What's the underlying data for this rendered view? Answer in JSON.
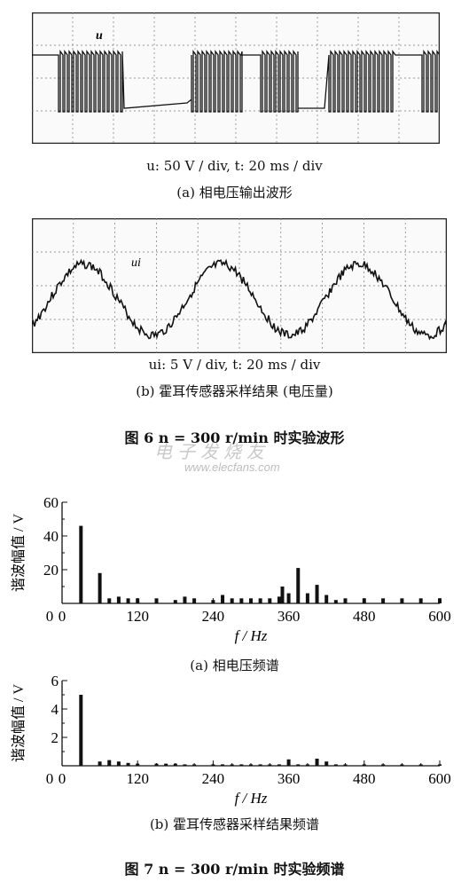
{
  "figure6": {
    "scope_a": {
      "trace_label": "u"
    },
    "caption_a_scale": "u: 50 V / div, t: 20 ms / div",
    "caption_a_title": "(a)  相电压输出波形",
    "scope_b": {
      "trace_label": "ui"
    },
    "caption_b_scale": "ui: 5 V / div, t: 20 ms / div",
    "caption_b_title": "(b)  霍耳传感器采样结果 (电压量)",
    "title": "图 6    n = 300 r/min 时实验波形"
  },
  "watermark": {
    "text": "www.elecfans.com",
    "logo_text": "电子发烧友"
  },
  "figure7": {
    "caption_a": "(a) 相电压频谱",
    "caption_b": "(b) 霍耳传感器采样结果频谱",
    "title": "图 7    n = 300 r/min 时实验频谱"
  },
  "chart_data": [
    {
      "type": "bar",
      "title": "",
      "ylabel": "谐波幅值 / V",
      "xlabel": "f / Hz",
      "xlim": [
        0,
        600
      ],
      "ylim": [
        0,
        60
      ],
      "xticks": [
        0,
        120,
        240,
        360,
        480,
        600
      ],
      "yticks": [
        20,
        40,
        60
      ],
      "grid": false,
      "x": [
        30,
        60,
        75,
        90,
        105,
        120,
        150,
        180,
        195,
        210,
        240,
        255,
        270,
        285,
        300,
        315,
        330,
        345,
        350,
        360,
        375,
        390,
        405,
        420,
        435,
        450,
        480,
        510,
        540,
        570,
        600
      ],
      "values": [
        46,
        18,
        3,
        4,
        3,
        3,
        3,
        2,
        4,
        3,
        2,
        5,
        3,
        3,
        3,
        3,
        3,
        4,
        10,
        6,
        21,
        6,
        11,
        5,
        2,
        3,
        3,
        3,
        3,
        3,
        3
      ]
    },
    {
      "type": "bar",
      "title": "",
      "ylabel": "谐波幅值 / V",
      "xlabel": "f / Hz",
      "xlim": [
        0,
        600
      ],
      "ylim": [
        0,
        6
      ],
      "xticks": [
        0,
        120,
        240,
        360,
        480,
        600
      ],
      "yticks": [
        2,
        4,
        6
      ],
      "grid": false,
      "x": [
        30,
        60,
        75,
        90,
        105,
        120,
        150,
        165,
        180,
        195,
        210,
        240,
        255,
        270,
        285,
        300,
        315,
        330,
        345,
        360,
        375,
        390,
        405,
        420,
        435,
        450,
        480,
        510,
        540,
        570,
        600
      ],
      "values": [
        5.0,
        0.3,
        0.4,
        0.3,
        0.2,
        0.15,
        0.15,
        0.15,
        0.15,
        0.1,
        0.1,
        0.1,
        0.1,
        0.1,
        0.1,
        0.1,
        0.1,
        0.1,
        0.1,
        0.45,
        0.1,
        0.1,
        0.5,
        0.3,
        0.1,
        0.1,
        0.1,
        0.1,
        0.1,
        0.1,
        0.1
      ]
    }
  ]
}
